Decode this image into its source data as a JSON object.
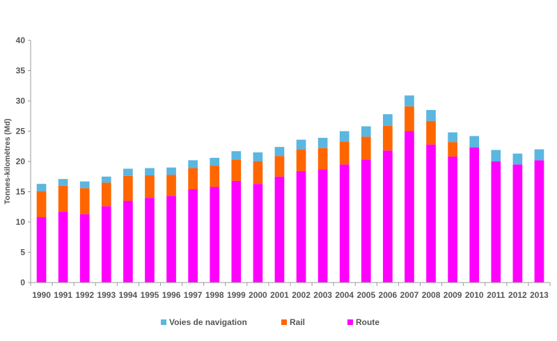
{
  "chart_data": {
    "type": "bar",
    "stacked": true,
    "title": "",
    "xlabel": "",
    "ylabel": "Tonnes-kilomètres (Md)",
    "ylim": [
      0,
      40
    ],
    "yticks": [
      0,
      5,
      10,
      15,
      20,
      25,
      30,
      35,
      40
    ],
    "grid": false,
    "legend_position": "bottom",
    "categories": [
      "1990",
      "1991",
      "1992",
      "1993",
      "1994",
      "1995",
      "1996",
      "1997",
      "1998",
      "1999",
      "2000",
      "2001",
      "2002",
      "2003",
      "2004",
      "2005",
      "2006",
      "2007",
      "2008",
      "2009",
      "2010",
      "2011",
      "2012",
      "2013"
    ],
    "series": [
      {
        "name": "Route",
        "color": "#ff00ff",
        "values": [
          10.8,
          11.7,
          11.3,
          12.6,
          13.5,
          14.0,
          14.3,
          15.4,
          15.8,
          16.8,
          16.3,
          17.5,
          18.4,
          18.7,
          19.5,
          20.3,
          21.8,
          25.0,
          22.8,
          20.8,
          22.3,
          20.0,
          19.5,
          20.2
        ]
      },
      {
        "name": "Rail",
        "color": "#ff6600",
        "values": [
          4.3,
          4.3,
          4.3,
          3.9,
          4.1,
          3.7,
          3.5,
          3.5,
          3.5,
          3.5,
          3.7,
          3.4,
          3.6,
          3.5,
          3.8,
          3.8,
          4.1,
          4.1,
          3.9,
          2.4,
          0.0,
          0.0,
          0.0,
          0.0
        ]
      },
      {
        "name": "Voies de navigation",
        "color": "#5bb6e0",
        "values": [
          1.2,
          1.1,
          1.1,
          1.0,
          1.2,
          1.2,
          1.2,
          1.3,
          1.3,
          1.4,
          1.5,
          1.5,
          1.6,
          1.7,
          1.7,
          1.7,
          1.9,
          1.8,
          1.8,
          1.6,
          1.9,
          1.9,
          1.8,
          1.8
        ]
      }
    ],
    "legend_order": [
      "Voies de navigation",
      "Rail",
      "Route"
    ]
  }
}
